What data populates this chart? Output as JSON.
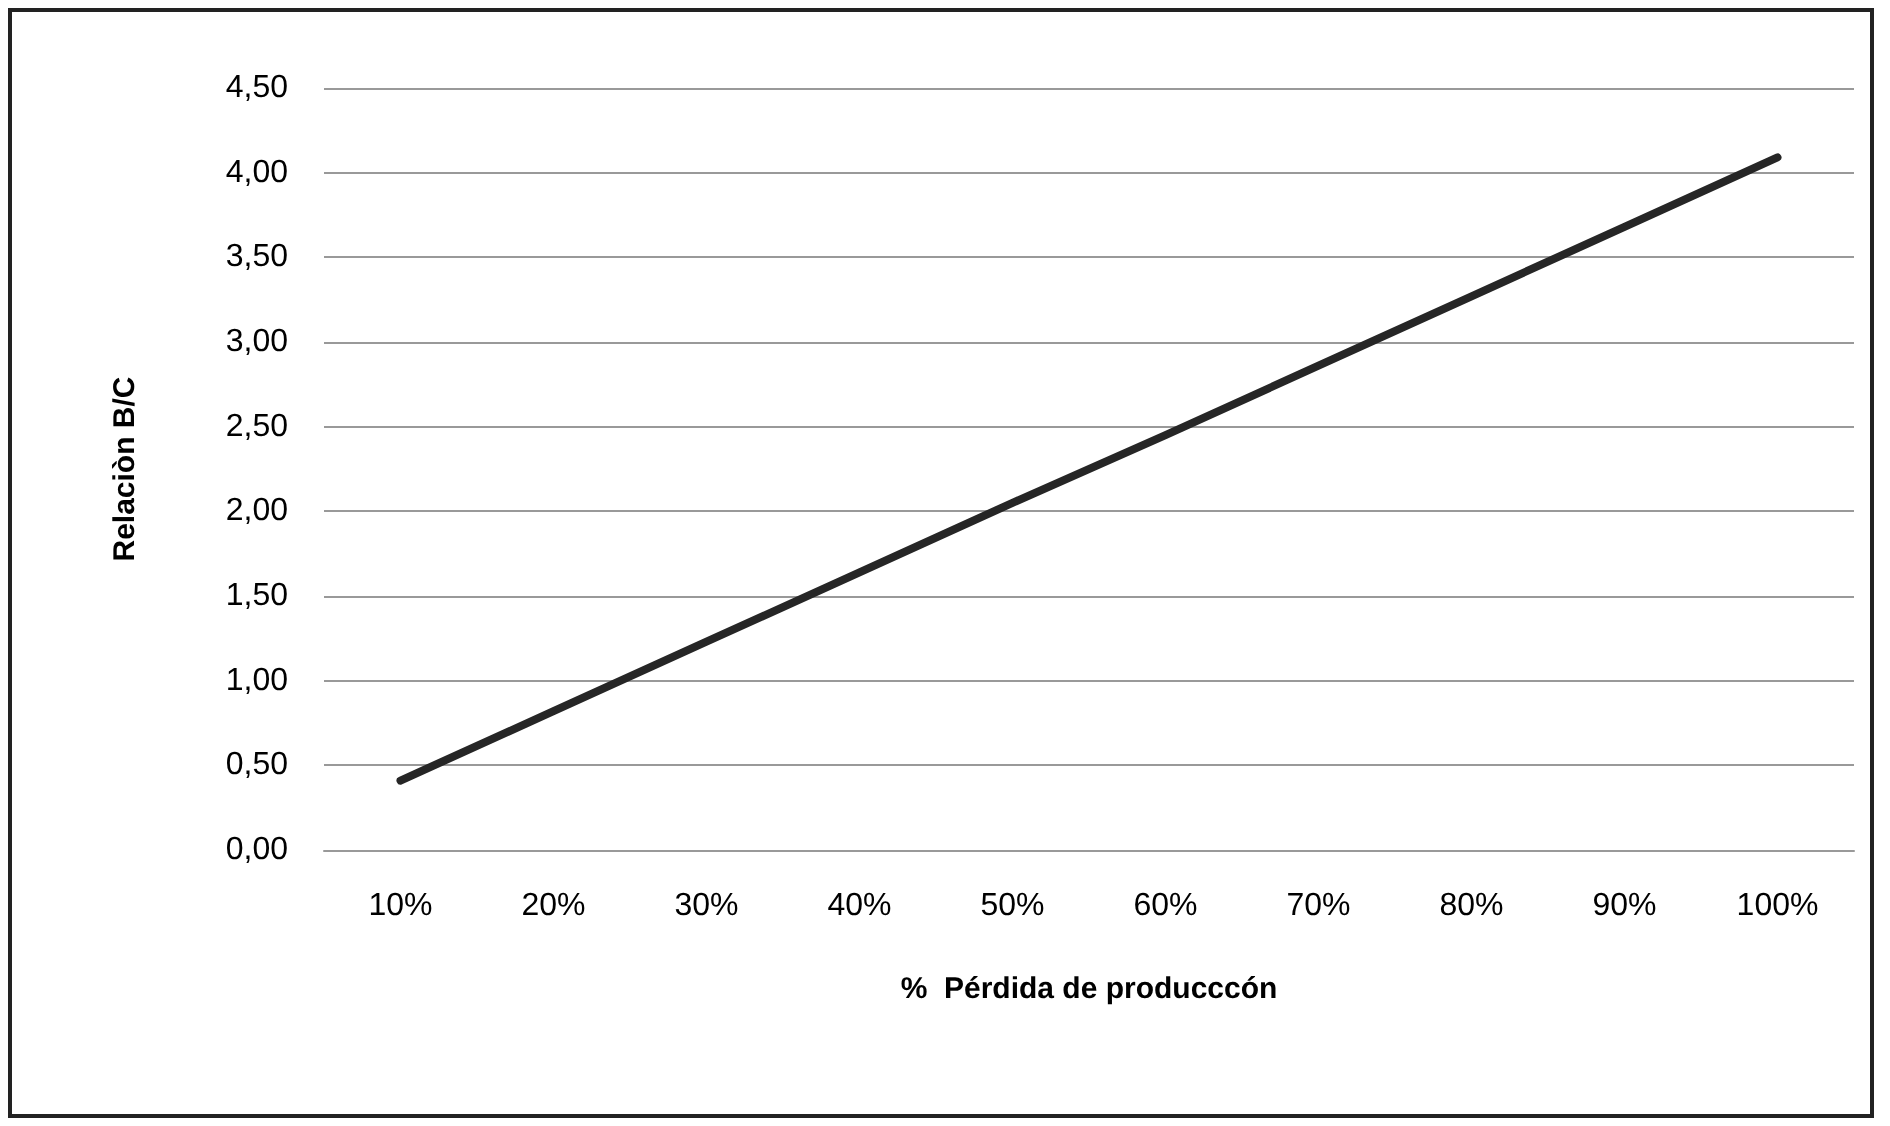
{
  "chart_data": {
    "type": "line",
    "xlabel": "%  Pérdida de producccón",
    "ylabel": "Relaciòn B/C",
    "categories": [
      "10%",
      "20%",
      "30%",
      "40%",
      "50%",
      "60%",
      "70%",
      "80%",
      "90%",
      "100%"
    ],
    "series": [
      {
        "color": "#262626",
        "values": [
          0.41,
          0.82,
          1.23,
          1.64,
          2.05,
          2.45,
          2.86,
          3.27,
          3.68,
          4.09
        ]
      }
    ],
    "ylim": [
      0,
      4.5
    ],
    "yticks": [
      {
        "value": 0,
        "label": "0,00"
      },
      {
        "value": 0.5,
        "label": "0,50"
      },
      {
        "value": 1,
        "label": "1,00"
      },
      {
        "value": 1.5,
        "label": "1,50"
      },
      {
        "value": 2,
        "label": "2,00"
      },
      {
        "value": 2.5,
        "label": "2,50"
      },
      {
        "value": 3,
        "label": "3,00"
      },
      {
        "value": 3.5,
        "label": "3,50"
      },
      {
        "value": 4,
        "label": "4,00"
      },
      {
        "value": 4.5,
        "label": "4,50"
      }
    ],
    "grid": "y",
    "marker": "none",
    "line_style": "solid"
  }
}
